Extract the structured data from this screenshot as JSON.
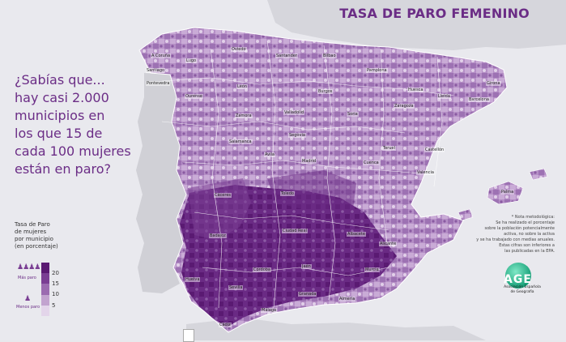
{
  "title": "TASA DE PARO FEMENINO",
  "question_lines": [
    "¿Sabías que...",
    "hay casi 2.000",
    "municipios en",
    "los que 15 de",
    "cada 100 mujeres",
    "están en paro?"
  ],
  "legend": {
    "title_lines": [
      "Tasa de Paro",
      "de mujeres",
      "por municipio",
      "(en porcentaje)"
    ],
    "ticks": [
      "20",
      "15",
      "10",
      "5"
    ],
    "more_label": "Más paro",
    "less_label": "Menos paro",
    "colors": [
      "#5a1a72",
      "#7a3e93",
      "#9b6bb0",
      "#c2a3cf",
      "#e3d5ea"
    ]
  },
  "note_lines": [
    "* Nota metodológica:",
    "Se ha realizado el porcentaje",
    "sobre la población potencialmente",
    "activa, no sobre la activa",
    "y se ha trabajado con medias anuales.",
    "Estas cifras son inferiores a",
    "las publicadas en la EPA."
  ],
  "logo": {
    "text": "AGE",
    "name_lines": [
      "Asociación Española",
      "de Geografía"
    ]
  },
  "cities": [
    {
      "name": "A Coruña"
    },
    {
      "name": "Lugo"
    },
    {
      "name": "Santiago"
    },
    {
      "name": "Oviedo"
    },
    {
      "name": "Santander"
    },
    {
      "name": "Bilbao"
    },
    {
      "name": "Pamplona"
    },
    {
      "name": "Huesca"
    },
    {
      "name": "Girona"
    },
    {
      "name": "Barcelona"
    },
    {
      "name": "Lleida"
    },
    {
      "name": "Zaragoza"
    },
    {
      "name": "Burgos"
    },
    {
      "name": "León"
    },
    {
      "name": "Ourense"
    },
    {
      "name": "Pontevedra"
    },
    {
      "name": "Valladolid"
    },
    {
      "name": "Zamora"
    },
    {
      "name": "Salamanca"
    },
    {
      "name": "Segovia"
    },
    {
      "name": "Ávila"
    },
    {
      "name": "Madrid"
    },
    {
      "name": "Soria"
    },
    {
      "name": "Teruel"
    },
    {
      "name": "Castellón"
    },
    {
      "name": "Valencia"
    },
    {
      "name": "Cuenca"
    },
    {
      "name": "Toledo"
    },
    {
      "name": "Cáceres"
    },
    {
      "name": "Badajoz"
    },
    {
      "name": "Ciudad Real"
    },
    {
      "name": "Albacete"
    },
    {
      "name": "Alicante"
    },
    {
      "name": "Murcia"
    },
    {
      "name": "Jaén"
    },
    {
      "name": "Córdoba"
    },
    {
      "name": "Sevilla"
    },
    {
      "name": "Huelva"
    },
    {
      "name": "Granada"
    },
    {
      "name": "Almería"
    },
    {
      "name": "Málaga"
    },
    {
      "name": "Cádiz"
    },
    {
      "name": "Palma"
    }
  ]
}
